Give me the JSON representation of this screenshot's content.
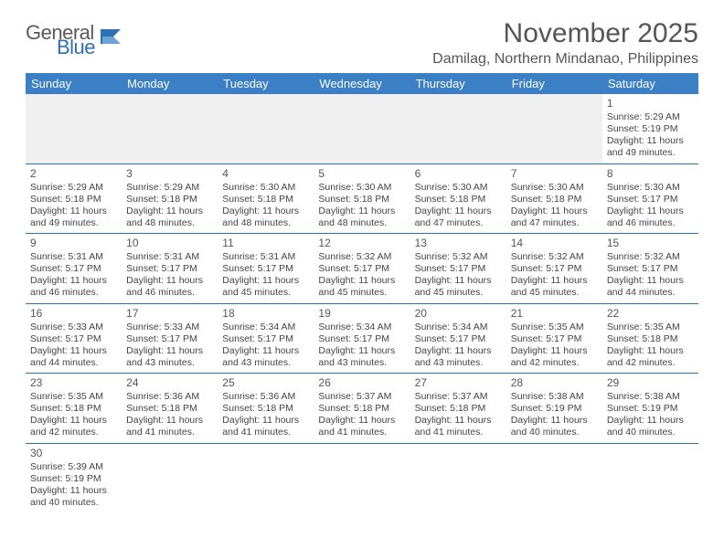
{
  "logo": {
    "general": "General",
    "blue": "Blue"
  },
  "title": "November 2025",
  "location": "Damilag, Northern Mindanao, Philippines",
  "colors": {
    "header_bg": "#3b7fc4",
    "header_text": "#ffffff",
    "border": "#2f6fb3",
    "text": "#444444",
    "empty_bg": "#f0f0f0",
    "logo_general": "#5a5a5a",
    "logo_blue": "#2f6fb3"
  },
  "day_headers": [
    "Sunday",
    "Monday",
    "Tuesday",
    "Wednesday",
    "Thursday",
    "Friday",
    "Saturday"
  ],
  "weeks": [
    [
      null,
      null,
      null,
      null,
      null,
      null,
      {
        "n": "1",
        "sr": "5:29 AM",
        "ss": "5:19 PM",
        "dl": "11 hours and 49 minutes."
      }
    ],
    [
      {
        "n": "2",
        "sr": "5:29 AM",
        "ss": "5:18 PM",
        "dl": "11 hours and 49 minutes."
      },
      {
        "n": "3",
        "sr": "5:29 AM",
        "ss": "5:18 PM",
        "dl": "11 hours and 48 minutes."
      },
      {
        "n": "4",
        "sr": "5:30 AM",
        "ss": "5:18 PM",
        "dl": "11 hours and 48 minutes."
      },
      {
        "n": "5",
        "sr": "5:30 AM",
        "ss": "5:18 PM",
        "dl": "11 hours and 48 minutes."
      },
      {
        "n": "6",
        "sr": "5:30 AM",
        "ss": "5:18 PM",
        "dl": "11 hours and 47 minutes."
      },
      {
        "n": "7",
        "sr": "5:30 AM",
        "ss": "5:18 PM",
        "dl": "11 hours and 47 minutes."
      },
      {
        "n": "8",
        "sr": "5:30 AM",
        "ss": "5:17 PM",
        "dl": "11 hours and 46 minutes."
      }
    ],
    [
      {
        "n": "9",
        "sr": "5:31 AM",
        "ss": "5:17 PM",
        "dl": "11 hours and 46 minutes."
      },
      {
        "n": "10",
        "sr": "5:31 AM",
        "ss": "5:17 PM",
        "dl": "11 hours and 46 minutes."
      },
      {
        "n": "11",
        "sr": "5:31 AM",
        "ss": "5:17 PM",
        "dl": "11 hours and 45 minutes."
      },
      {
        "n": "12",
        "sr": "5:32 AM",
        "ss": "5:17 PM",
        "dl": "11 hours and 45 minutes."
      },
      {
        "n": "13",
        "sr": "5:32 AM",
        "ss": "5:17 PM",
        "dl": "11 hours and 45 minutes."
      },
      {
        "n": "14",
        "sr": "5:32 AM",
        "ss": "5:17 PM",
        "dl": "11 hours and 45 minutes."
      },
      {
        "n": "15",
        "sr": "5:32 AM",
        "ss": "5:17 PM",
        "dl": "11 hours and 44 minutes."
      }
    ],
    [
      {
        "n": "16",
        "sr": "5:33 AM",
        "ss": "5:17 PM",
        "dl": "11 hours and 44 minutes."
      },
      {
        "n": "17",
        "sr": "5:33 AM",
        "ss": "5:17 PM",
        "dl": "11 hours and 43 minutes."
      },
      {
        "n": "18",
        "sr": "5:34 AM",
        "ss": "5:17 PM",
        "dl": "11 hours and 43 minutes."
      },
      {
        "n": "19",
        "sr": "5:34 AM",
        "ss": "5:17 PM",
        "dl": "11 hours and 43 minutes."
      },
      {
        "n": "20",
        "sr": "5:34 AM",
        "ss": "5:17 PM",
        "dl": "11 hours and 43 minutes."
      },
      {
        "n": "21",
        "sr": "5:35 AM",
        "ss": "5:17 PM",
        "dl": "11 hours and 42 minutes."
      },
      {
        "n": "22",
        "sr": "5:35 AM",
        "ss": "5:18 PM",
        "dl": "11 hours and 42 minutes."
      }
    ],
    [
      {
        "n": "23",
        "sr": "5:35 AM",
        "ss": "5:18 PM",
        "dl": "11 hours and 42 minutes."
      },
      {
        "n": "24",
        "sr": "5:36 AM",
        "ss": "5:18 PM",
        "dl": "11 hours and 41 minutes."
      },
      {
        "n": "25",
        "sr": "5:36 AM",
        "ss": "5:18 PM",
        "dl": "11 hours and 41 minutes."
      },
      {
        "n": "26",
        "sr": "5:37 AM",
        "ss": "5:18 PM",
        "dl": "11 hours and 41 minutes."
      },
      {
        "n": "27",
        "sr": "5:37 AM",
        "ss": "5:18 PM",
        "dl": "11 hours and 41 minutes."
      },
      {
        "n": "28",
        "sr": "5:38 AM",
        "ss": "5:19 PM",
        "dl": "11 hours and 40 minutes."
      },
      {
        "n": "29",
        "sr": "5:38 AM",
        "ss": "5:19 PM",
        "dl": "11 hours and 40 minutes."
      }
    ],
    [
      {
        "n": "30",
        "sr": "5:39 AM",
        "ss": "5:19 PM",
        "dl": "11 hours and 40 minutes."
      },
      null,
      null,
      null,
      null,
      null,
      null
    ]
  ],
  "labels": {
    "sunrise": "Sunrise:",
    "sunset": "Sunset:",
    "daylight": "Daylight:"
  }
}
